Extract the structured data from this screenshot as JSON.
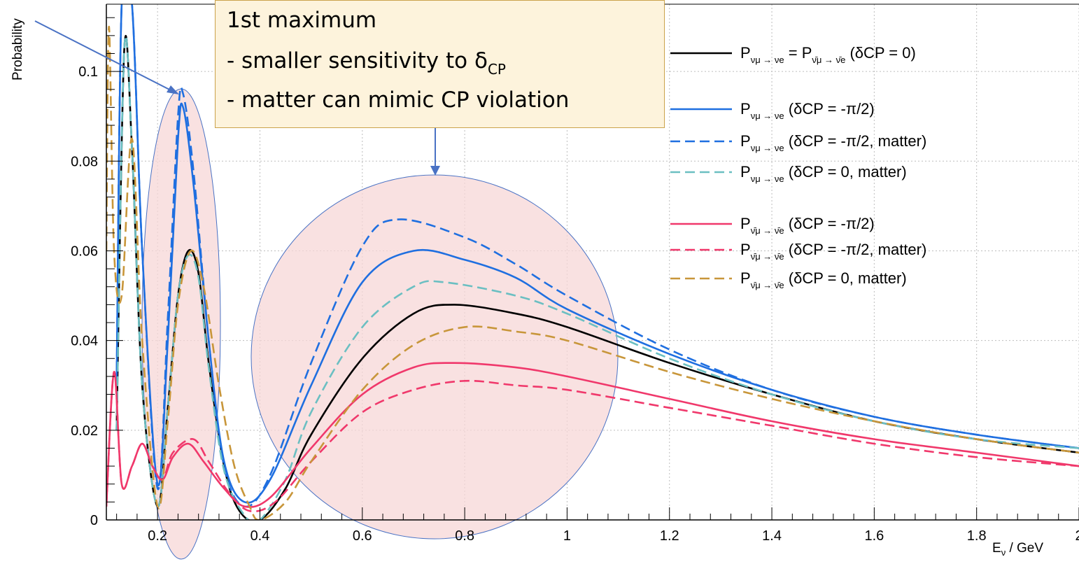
{
  "chart_data": {
    "type": "line",
    "title": "",
    "xlabel": "E",
    "xlabel_sub": "ν",
    "xlabel_unit": " / GeV",
    "ylabel": "Probability",
    "xlim": [
      0.1,
      2.0
    ],
    "ylim": [
      0,
      0.115
    ],
    "grid": true,
    "x_ticks": [
      {
        "v": 0.2,
        "label": "0.2"
      },
      {
        "v": 0.4,
        "label": "0.4"
      },
      {
        "v": 0.6,
        "label": "0.6"
      },
      {
        "v": 0.8,
        "label": "0.8"
      },
      {
        "v": 1.0,
        "label": "1"
      },
      {
        "v": 1.2,
        "label": "1.2"
      },
      {
        "v": 1.4,
        "label": "1.4"
      },
      {
        "v": 1.6,
        "label": "1.6"
      },
      {
        "v": 1.8,
        "label": "1.8"
      },
      {
        "v": 2.0,
        "label": "2"
      }
    ],
    "y_ticks": [
      {
        "v": 0,
        "label": "0"
      },
      {
        "v": 0.02,
        "label": "0.02"
      },
      {
        "v": 0.04,
        "label": "0.04"
      },
      {
        "v": 0.06,
        "label": "0.06"
      },
      {
        "v": 0.08,
        "label": "0.08"
      },
      {
        "v": 0.1,
        "label": "0.1"
      }
    ],
    "legend_position": "top-right",
    "series": [
      {
        "key": "s1",
        "color": "#000000",
        "dashed": false,
        "legend_main": "P",
        "legend_sub": "νμ → νe",
        "legend_rest": " = P",
        "legend_sub2": "ν̄μ → ν̄e",
        "legend_tail": " (δCP = 0)",
        "points": [
          [
            0.12,
            0.02
          ],
          [
            0.135,
            0.105
          ],
          [
            0.15,
            0.083
          ],
          [
            0.17,
            0.03
          ],
          [
            0.2,
            0.003
          ],
          [
            0.22,
            0.025
          ],
          [
            0.24,
            0.05
          ],
          [
            0.26,
            0.06
          ],
          [
            0.28,
            0.055
          ],
          [
            0.3,
            0.035
          ],
          [
            0.33,
            0.012
          ],
          [
            0.36,
            0.002
          ],
          [
            0.4,
            0.0
          ],
          [
            0.45,
            0.007
          ],
          [
            0.5,
            0.019
          ],
          [
            0.6,
            0.036
          ],
          [
            0.7,
            0.046
          ],
          [
            0.78,
            0.048
          ],
          [
            0.9,
            0.046
          ],
          [
            1.0,
            0.043
          ],
          [
            1.2,
            0.035
          ],
          [
            1.4,
            0.028
          ],
          [
            1.6,
            0.022
          ],
          [
            1.8,
            0.018
          ],
          [
            2.0,
            0.015
          ]
        ]
      },
      {
        "key": "s2",
        "color": "#1f6fe0",
        "dashed": false,
        "legend_main": "P",
        "legend_sub": "νμ → νe",
        "legend_rest": "",
        "legend_sub2": "",
        "legend_tail": " (δCP = -π/2)",
        "points": [
          [
            0.12,
            0.03
          ],
          [
            0.13,
            0.115
          ],
          [
            0.15,
            0.115
          ],
          [
            0.17,
            0.06
          ],
          [
            0.2,
            0.008
          ],
          [
            0.22,
            0.04
          ],
          [
            0.24,
            0.085
          ],
          [
            0.25,
            0.092
          ],
          [
            0.27,
            0.075
          ],
          [
            0.3,
            0.04
          ],
          [
            0.33,
            0.013
          ],
          [
            0.37,
            0.004
          ],
          [
            0.42,
            0.009
          ],
          [
            0.5,
            0.03
          ],
          [
            0.6,
            0.053
          ],
          [
            0.7,
            0.06
          ],
          [
            0.8,
            0.058
          ],
          [
            0.9,
            0.054
          ],
          [
            1.0,
            0.047
          ],
          [
            1.2,
            0.037
          ],
          [
            1.4,
            0.029
          ],
          [
            1.6,
            0.023
          ],
          [
            1.8,
            0.019
          ],
          [
            2.0,
            0.016
          ]
        ]
      },
      {
        "key": "s3",
        "color": "#1f6fe0",
        "dashed": true,
        "legend_main": "P",
        "legend_sub": "νμ → νe",
        "legend_rest": "",
        "legend_sub2": "",
        "legend_tail": " (δCP = -π/2, matter)",
        "points": [
          [
            0.12,
            0.03
          ],
          [
            0.13,
            0.115
          ],
          [
            0.15,
            0.115
          ],
          [
            0.17,
            0.06
          ],
          [
            0.2,
            0.007
          ],
          [
            0.22,
            0.045
          ],
          [
            0.24,
            0.09
          ],
          [
            0.25,
            0.095
          ],
          [
            0.27,
            0.078
          ],
          [
            0.3,
            0.04
          ],
          [
            0.33,
            0.012
          ],
          [
            0.37,
            0.003
          ],
          [
            0.42,
            0.01
          ],
          [
            0.5,
            0.035
          ],
          [
            0.6,
            0.061
          ],
          [
            0.67,
            0.067
          ],
          [
            0.8,
            0.063
          ],
          [
            0.9,
            0.057
          ],
          [
            1.0,
            0.05
          ],
          [
            1.2,
            0.038
          ],
          [
            1.4,
            0.029
          ],
          [
            1.6,
            0.023
          ],
          [
            1.8,
            0.019
          ],
          [
            2.0,
            0.016
          ]
        ]
      },
      {
        "key": "s4",
        "color": "#6bbfc2",
        "dashed": true,
        "legend_main": "P",
        "legend_sub": "νμ → νe",
        "legend_rest": "",
        "legend_sub2": "",
        "legend_tail": " (δCP = 0, matter)",
        "points": [
          [
            0.12,
            0.02
          ],
          [
            0.135,
            0.105
          ],
          [
            0.15,
            0.083
          ],
          [
            0.17,
            0.03
          ],
          [
            0.2,
            0.003
          ],
          [
            0.22,
            0.025
          ],
          [
            0.24,
            0.05
          ],
          [
            0.26,
            0.059
          ],
          [
            0.28,
            0.054
          ],
          [
            0.3,
            0.034
          ],
          [
            0.33,
            0.011
          ],
          [
            0.37,
            0.001
          ],
          [
            0.4,
            0.0
          ],
          [
            0.45,
            0.009
          ],
          [
            0.5,
            0.024
          ],
          [
            0.6,
            0.043
          ],
          [
            0.7,
            0.052
          ],
          [
            0.76,
            0.053
          ],
          [
            0.9,
            0.05
          ],
          [
            1.0,
            0.046
          ],
          [
            1.2,
            0.036
          ],
          [
            1.4,
            0.028
          ],
          [
            1.6,
            0.022
          ],
          [
            1.8,
            0.018
          ],
          [
            2.0,
            0.016
          ]
        ]
      },
      {
        "key": "s5",
        "color": "#f0386b",
        "dashed": false,
        "legend_main": "P",
        "legend_sub": "ν̄μ → ν̄e",
        "legend_rest": "",
        "legend_sub2": "",
        "legend_tail": " (δCP = -π/2)",
        "points": [
          [
            0.1,
            0.003
          ],
          [
            0.115,
            0.033
          ],
          [
            0.13,
            0.008
          ],
          [
            0.15,
            0.012
          ],
          [
            0.17,
            0.017
          ],
          [
            0.19,
            0.012
          ],
          [
            0.21,
            0.009
          ],
          [
            0.23,
            0.014
          ],
          [
            0.26,
            0.017
          ],
          [
            0.29,
            0.013
          ],
          [
            0.33,
            0.007
          ],
          [
            0.37,
            0.003
          ],
          [
            0.42,
            0.005
          ],
          [
            0.5,
            0.016
          ],
          [
            0.6,
            0.028
          ],
          [
            0.7,
            0.034
          ],
          [
            0.78,
            0.035
          ],
          [
            0.9,
            0.034
          ],
          [
            1.0,
            0.032
          ],
          [
            1.2,
            0.027
          ],
          [
            1.4,
            0.022
          ],
          [
            1.6,
            0.018
          ],
          [
            1.8,
            0.015
          ],
          [
            2.0,
            0.012
          ]
        ]
      },
      {
        "key": "s6",
        "color": "#f0386b",
        "dashed": true,
        "legend_main": "P",
        "legend_sub": "ν̄μ → ν̄e",
        "legend_rest": "",
        "legend_sub2": "",
        "legend_tail": " (δCP = -π/2, matter)",
        "points": [
          [
            0.1,
            0.003
          ],
          [
            0.115,
            0.033
          ],
          [
            0.13,
            0.008
          ],
          [
            0.15,
            0.012
          ],
          [
            0.17,
            0.017
          ],
          [
            0.19,
            0.012
          ],
          [
            0.21,
            0.009
          ],
          [
            0.23,
            0.015
          ],
          [
            0.27,
            0.018
          ],
          [
            0.3,
            0.013
          ],
          [
            0.34,
            0.006
          ],
          [
            0.38,
            0.002
          ],
          [
            0.43,
            0.004
          ],
          [
            0.5,
            0.013
          ],
          [
            0.6,
            0.024
          ],
          [
            0.7,
            0.029
          ],
          [
            0.8,
            0.031
          ],
          [
            0.9,
            0.03
          ],
          [
            1.0,
            0.029
          ],
          [
            1.2,
            0.025
          ],
          [
            1.4,
            0.021
          ],
          [
            1.6,
            0.017
          ],
          [
            1.8,
            0.014
          ],
          [
            2.0,
            0.012
          ]
        ]
      },
      {
        "key": "s7",
        "color": "#c8963a",
        "dashed": true,
        "legend_main": "P",
        "legend_sub": "ν̄μ → ν̄e",
        "legend_rest": "",
        "legend_sub2": "",
        "legend_tail": " (δCP = 0, matter)",
        "points": [
          [
            0.1,
            0.06
          ],
          [
            0.105,
            0.11
          ],
          [
            0.115,
            0.06
          ],
          [
            0.13,
            0.05
          ],
          [
            0.15,
            0.085
          ],
          [
            0.17,
            0.04
          ],
          [
            0.2,
            0.003
          ],
          [
            0.22,
            0.022
          ],
          [
            0.24,
            0.048
          ],
          [
            0.265,
            0.06
          ],
          [
            0.29,
            0.052
          ],
          [
            0.32,
            0.03
          ],
          [
            0.35,
            0.012
          ],
          [
            0.38,
            0.003
          ],
          [
            0.4,
            0.0
          ],
          [
            0.45,
            0.004
          ],
          [
            0.5,
            0.013
          ],
          [
            0.6,
            0.029
          ],
          [
            0.7,
            0.039
          ],
          [
            0.8,
            0.043
          ],
          [
            0.9,
            0.042
          ],
          [
            1.0,
            0.04
          ],
          [
            1.2,
            0.033
          ],
          [
            1.4,
            0.027
          ],
          [
            1.6,
            0.022
          ],
          [
            1.8,
            0.018
          ],
          [
            2.0,
            0.015
          ]
        ]
      }
    ]
  },
  "annotation": {
    "line1": "1st maximum",
    "line2": "- smaller sensitivity to δ",
    "line2_sub": "CP",
    "line3": "- matter can mimic CP violation"
  }
}
